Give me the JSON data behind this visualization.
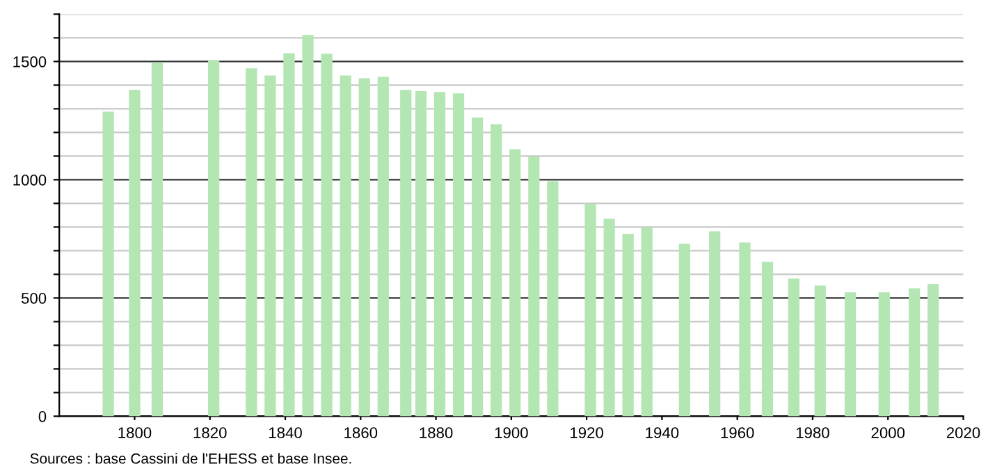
{
  "chart_data": {
    "type": "bar",
    "x": [
      1793,
      1800,
      1806,
      1821,
      1831,
      1836,
      1841,
      1846,
      1851,
      1856,
      1861,
      1866,
      1872,
      1876,
      1881,
      1886,
      1891,
      1896,
      1901,
      1906,
      1911,
      1921,
      1926,
      1931,
      1936,
      1946,
      1954,
      1962,
      1968,
      1975,
      1982,
      1990,
      1999,
      2007,
      2012
    ],
    "values": [
      1288,
      1380,
      1496,
      1506,
      1471,
      1441,
      1535,
      1612,
      1533,
      1441,
      1429,
      1435,
      1380,
      1375,
      1371,
      1365,
      1263,
      1235,
      1129,
      1098,
      994,
      898,
      835,
      771,
      798,
      729,
      782,
      735,
      653,
      582,
      553,
      524,
      524,
      541,
      559
    ],
    "color": "#b3e6b3",
    "xlim": [
      1780,
      2020
    ],
    "xticks": [
      1800,
      1820,
      1840,
      1860,
      1880,
      1900,
      1920,
      1940,
      1960,
      1980,
      2000,
      2020
    ],
    "ylim": [
      0,
      1700
    ],
    "yticks": [
      0,
      {
        "value": 100,
        "label": null
      },
      {
        "value": 200,
        "label": null
      },
      {
        "value": 300,
        "label": null
      },
      {
        "value": 400,
        "label": null
      },
      500,
      {
        "value": 600,
        "label": null
      },
      {
        "value": 700,
        "label": null
      },
      {
        "value": 800,
        "label": null
      },
      {
        "value": 900,
        "label": null
      },
      1000,
      {
        "value": 1100,
        "label": null
      },
      {
        "value": 1200,
        "label": null
      },
      {
        "value": 1300,
        "label": null
      },
      {
        "value": 1400,
        "label": null
      },
      1500,
      {
        "value": 1600,
        "label": null
      },
      {
        "value": 1700,
        "label": null
      }
    ],
    "grid": "y",
    "annotations": [
      "Sources : base Cassini de l'EHESS et base Insee."
    ]
  }
}
